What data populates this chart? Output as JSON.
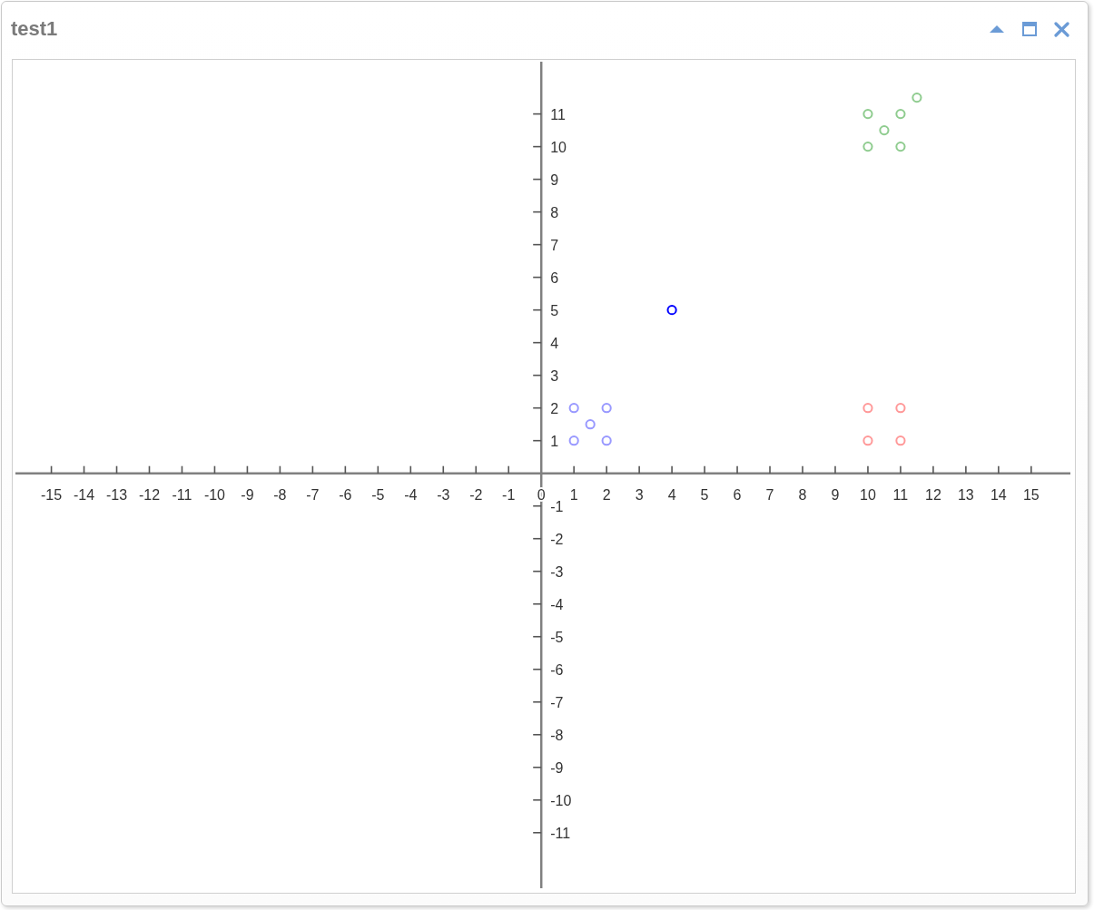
{
  "chart_data": {
    "type": "scatter",
    "title": "test1",
    "marker": "circle",
    "xlim": [
      -16.1,
      16.2
    ],
    "ylim": [
      -12.7,
      12.6
    ],
    "xticks": [
      -15,
      -14,
      -13,
      -12,
      -11,
      -10,
      -9,
      -8,
      -7,
      -6,
      -5,
      -4,
      -3,
      -2,
      -1,
      0,
      1,
      2,
      3,
      4,
      5,
      6,
      7,
      8,
      9,
      10,
      11,
      12,
      13,
      14,
      15
    ],
    "yticks": [
      -11,
      -10,
      -9,
      -8,
      -7,
      -6,
      -5,
      -4,
      -3,
      -2,
      -1,
      1,
      2,
      3,
      4,
      5,
      6,
      7,
      8,
      9,
      10,
      11
    ],
    "series": [
      {
        "color": "#9999ff",
        "x": [
          1,
          2,
          1.5,
          1,
          2
        ],
        "values": [
          2,
          2,
          1.5,
          1,
          1
        ]
      },
      {
        "color": "#ff9999",
        "x": [
          10,
          11,
          10,
          11
        ],
        "values": [
          2,
          2,
          1,
          1
        ]
      },
      {
        "color": "#8fcc8f",
        "x": [
          10,
          11,
          10.5,
          10,
          11,
          11.5
        ],
        "values": [
          11,
          11,
          10.5,
          10,
          10,
          11.5
        ]
      },
      {
        "color": "#0000ff",
        "x": [
          4
        ],
        "values": [
          5
        ]
      }
    ]
  }
}
